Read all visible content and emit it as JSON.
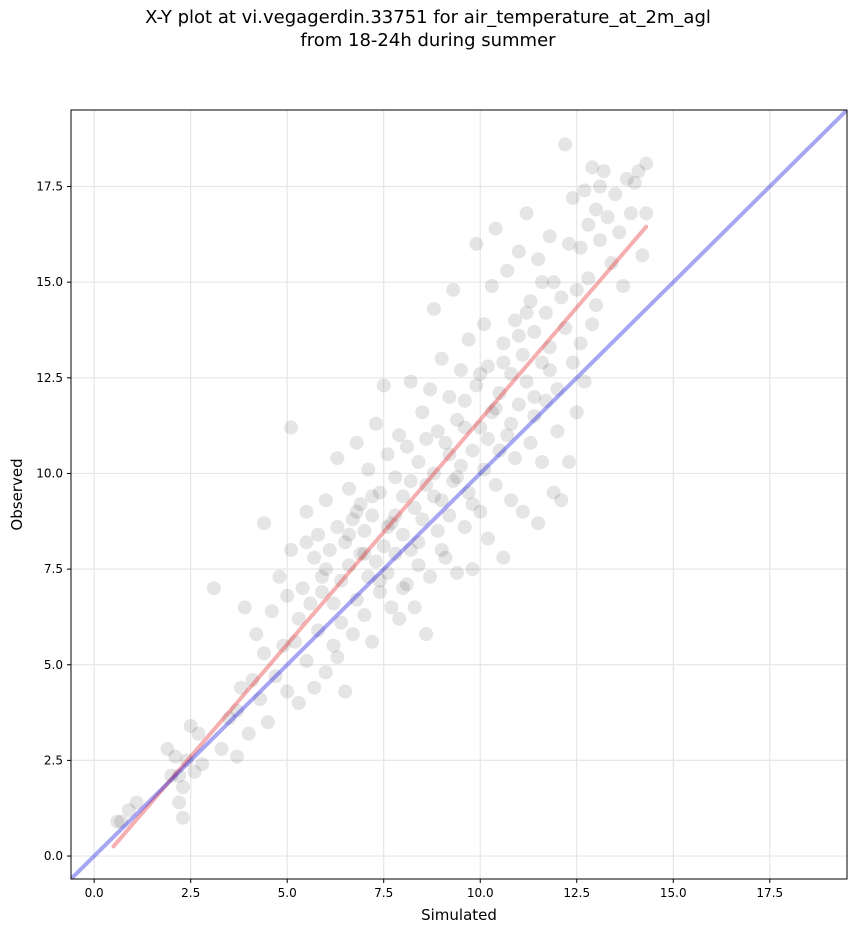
{
  "chart_data": {
    "type": "scatter",
    "title_line1": "X-Y plot at vi.vegagerdin.33751 for air_temperature_at_2m_agl",
    "title_line2": "from 18-24h during summer",
    "xlabel": "Simulated",
    "ylabel": "Observed",
    "xlim": [
      -0.6,
      19.5
    ],
    "ylim": [
      -0.6,
      19.5
    ],
    "xticks": [
      "0.0",
      "2.5",
      "5.0",
      "7.5",
      "10.0",
      "12.5",
      "15.0",
      "17.5"
    ],
    "yticks": [
      "0.0",
      "2.5",
      "5.0",
      "7.5",
      "10.0",
      "12.5",
      "15.0",
      "17.5"
    ],
    "xtick_values": [
      0,
      2.5,
      5,
      7.5,
      10,
      12.5,
      15,
      17.5
    ],
    "ytick_values": [
      0,
      2.5,
      5,
      7.5,
      10,
      12.5,
      15,
      17.5
    ],
    "grid": true,
    "series": [
      {
        "kind": "scatter",
        "color": "#000000",
        "opacity": 0.1,
        "points": [
          [
            0.6,
            0.9
          ],
          [
            0.7,
            0.9
          ],
          [
            0.9,
            1.2
          ],
          [
            1.1,
            1.4
          ],
          [
            1.9,
            2.8
          ],
          [
            2.0,
            2.1
          ],
          [
            2.1,
            2.6
          ],
          [
            2.2,
            1.4
          ],
          [
            2.2,
            2.1
          ],
          [
            2.3,
            1.0
          ],
          [
            2.3,
            1.8
          ],
          [
            2.4,
            2.5
          ],
          [
            2.5,
            3.4
          ],
          [
            2.6,
            2.2
          ],
          [
            2.7,
            3.2
          ],
          [
            2.8,
            2.4
          ],
          [
            3.1,
            7.0
          ],
          [
            3.3,
            2.8
          ],
          [
            3.5,
            3.6
          ],
          [
            3.7,
            2.6
          ],
          [
            3.7,
            3.8
          ],
          [
            3.8,
            4.4
          ],
          [
            3.9,
            6.5
          ],
          [
            4.0,
            3.2
          ],
          [
            4.1,
            4.6
          ],
          [
            4.2,
            5.8
          ],
          [
            4.3,
            4.1
          ],
          [
            4.4,
            8.7
          ],
          [
            4.4,
            5.3
          ],
          [
            4.5,
            3.5
          ],
          [
            4.6,
            6.4
          ],
          [
            4.7,
            4.7
          ],
          [
            4.8,
            7.3
          ],
          [
            4.9,
            5.5
          ],
          [
            5.0,
            4.3
          ],
          [
            5.0,
            6.8
          ],
          [
            5.1,
            11.2
          ],
          [
            5.1,
            8.0
          ],
          [
            5.2,
            5.6
          ],
          [
            5.3,
            4.0
          ],
          [
            5.3,
            6.2
          ],
          [
            5.4,
            7.0
          ],
          [
            5.5,
            9.0
          ],
          [
            5.5,
            5.1
          ],
          [
            5.6,
            6.6
          ],
          [
            5.7,
            4.4
          ],
          [
            5.7,
            7.8
          ],
          [
            5.8,
            8.4
          ],
          [
            5.8,
            5.9
          ],
          [
            5.9,
            6.9
          ],
          [
            6.0,
            4.8
          ],
          [
            6.0,
            7.5
          ],
          [
            6.0,
            9.3
          ],
          [
            6.1,
            8.0
          ],
          [
            6.2,
            5.5
          ],
          [
            6.2,
            6.6
          ],
          [
            6.3,
            8.6
          ],
          [
            6.3,
            10.4
          ],
          [
            6.4,
            7.2
          ],
          [
            6.4,
            6.1
          ],
          [
            6.5,
            4.3
          ],
          [
            6.5,
            8.2
          ],
          [
            6.6,
            9.6
          ],
          [
            6.6,
            7.6
          ],
          [
            6.7,
            5.8
          ],
          [
            6.7,
            8.8
          ],
          [
            6.8,
            6.7
          ],
          [
            6.8,
            10.8
          ],
          [
            6.9,
            7.9
          ],
          [
            6.9,
            9.2
          ],
          [
            7.0,
            6.3
          ],
          [
            7.0,
            8.5
          ],
          [
            7.1,
            7.3
          ],
          [
            7.1,
            10.1
          ],
          [
            7.2,
            5.6
          ],
          [
            7.2,
            8.9
          ],
          [
            7.3,
            7.7
          ],
          [
            7.3,
            11.3
          ],
          [
            7.4,
            6.9
          ],
          [
            7.4,
            9.5
          ],
          [
            7.5,
            8.1
          ],
          [
            7.5,
            12.3
          ],
          [
            7.6,
            7.4
          ],
          [
            7.6,
            10.5
          ],
          [
            7.7,
            6.5
          ],
          [
            7.7,
            8.7
          ],
          [
            7.8,
            9.9
          ],
          [
            7.8,
            7.9
          ],
          [
            7.9,
            11.0
          ],
          [
            7.9,
            6.2
          ],
          [
            8.0,
            8.4
          ],
          [
            8.0,
            9.4
          ],
          [
            8.1,
            7.1
          ],
          [
            8.1,
            10.7
          ],
          [
            8.2,
            12.4
          ],
          [
            8.2,
            8.0
          ],
          [
            8.3,
            9.1
          ],
          [
            8.3,
            6.5
          ],
          [
            8.4,
            10.3
          ],
          [
            8.4,
            7.6
          ],
          [
            8.5,
            11.6
          ],
          [
            8.5,
            8.8
          ],
          [
            8.6,
            5.8
          ],
          [
            8.6,
            9.7
          ],
          [
            8.7,
            12.2
          ],
          [
            8.7,
            7.3
          ],
          [
            8.8,
            10.0
          ],
          [
            8.8,
            14.3
          ],
          [
            8.9,
            8.5
          ],
          [
            8.9,
            11.1
          ],
          [
            9.0,
            9.3
          ],
          [
            9.0,
            13.0
          ],
          [
            9.1,
            7.8
          ],
          [
            9.1,
            10.8
          ],
          [
            9.2,
            12.0
          ],
          [
            9.2,
            8.9
          ],
          [
            9.3,
            9.8
          ],
          [
            9.3,
            14.8
          ],
          [
            9.4,
            11.4
          ],
          [
            9.4,
            7.4
          ],
          [
            9.5,
            10.2
          ],
          [
            9.5,
            12.7
          ],
          [
            9.6,
            8.6
          ],
          [
            9.6,
            11.9
          ],
          [
            9.7,
            9.5
          ],
          [
            9.7,
            13.5
          ],
          [
            9.8,
            10.6
          ],
          [
            9.8,
            7.5
          ],
          [
            9.9,
            12.3
          ],
          [
            9.9,
            16.0
          ],
          [
            10.0,
            9.0
          ],
          [
            10.0,
            11.2
          ],
          [
            10.1,
            13.9
          ],
          [
            10.1,
            10.1
          ],
          [
            10.2,
            8.3
          ],
          [
            10.2,
            12.8
          ],
          [
            10.3,
            11.6
          ],
          [
            10.3,
            14.9
          ],
          [
            10.4,
            9.7
          ],
          [
            10.4,
            16.4
          ],
          [
            10.5,
            12.1
          ],
          [
            10.5,
            10.6
          ],
          [
            10.6,
            7.8
          ],
          [
            10.6,
            13.4
          ],
          [
            10.7,
            11.0
          ],
          [
            10.7,
            15.3
          ],
          [
            10.8,
            9.3
          ],
          [
            10.8,
            12.6
          ],
          [
            10.9,
            14.0
          ],
          [
            10.9,
            10.4
          ],
          [
            11.0,
            11.8
          ],
          [
            11.0,
            15.8
          ],
          [
            11.1,
            13.1
          ],
          [
            11.1,
            9.0
          ],
          [
            11.2,
            12.4
          ],
          [
            11.2,
            16.8
          ],
          [
            11.3,
            10.8
          ],
          [
            11.3,
            14.5
          ],
          [
            11.4,
            11.5
          ],
          [
            11.4,
            13.7
          ],
          [
            11.5,
            8.7
          ],
          [
            11.5,
            15.6
          ],
          [
            11.6,
            12.9
          ],
          [
            11.6,
            10.3
          ],
          [
            11.7,
            14.2
          ],
          [
            11.7,
            11.9
          ],
          [
            11.8,
            16.2
          ],
          [
            11.8,
            13.3
          ],
          [
            11.9,
            9.5
          ],
          [
            11.9,
            15.0
          ],
          [
            12.0,
            12.2
          ],
          [
            12.0,
            11.1
          ],
          [
            12.1,
            14.6
          ],
          [
            12.1,
            9.3
          ],
          [
            12.2,
            18.6
          ],
          [
            12.2,
            13.8
          ],
          [
            12.3,
            10.3
          ],
          [
            12.3,
            16.0
          ],
          [
            12.4,
            12.9
          ],
          [
            12.4,
            17.2
          ],
          [
            12.5,
            11.6
          ],
          [
            12.5,
            14.8
          ],
          [
            12.6,
            15.9
          ],
          [
            12.6,
            13.4
          ],
          [
            12.7,
            17.4
          ],
          [
            12.7,
            12.4
          ],
          [
            12.8,
            16.5
          ],
          [
            12.8,
            15.1
          ],
          [
            12.9,
            18.0
          ],
          [
            12.9,
            13.9
          ],
          [
            13.0,
            16.9
          ],
          [
            13.0,
            14.4
          ],
          [
            13.1,
            17.5
          ],
          [
            13.1,
            16.1
          ],
          [
            13.2,
            17.9
          ],
          [
            13.3,
            16.7
          ],
          [
            13.4,
            15.5
          ],
          [
            13.5,
            17.3
          ],
          [
            13.6,
            16.3
          ],
          [
            13.7,
            14.9
          ],
          [
            13.8,
            17.7
          ],
          [
            13.9,
            16.8
          ],
          [
            14.0,
            17.6
          ],
          [
            14.1,
            17.9
          ],
          [
            14.2,
            15.7
          ],
          [
            14.3,
            16.8
          ],
          [
            14.3,
            18.1
          ],
          [
            5.5,
            8.2
          ],
          [
            5.9,
            7.3
          ],
          [
            6.3,
            5.2
          ],
          [
            6.6,
            8.4
          ],
          [
            6.8,
            9.0
          ],
          [
            7.0,
            7.9
          ],
          [
            7.2,
            9.4
          ],
          [
            7.4,
            7.2
          ],
          [
            7.6,
            8.6
          ],
          [
            7.8,
            8.9
          ],
          [
            8.0,
            7.0
          ],
          [
            8.2,
            9.8
          ],
          [
            8.4,
            8.2
          ],
          [
            8.6,
            10.9
          ],
          [
            8.8,
            9.4
          ],
          [
            9.0,
            8.0
          ],
          [
            9.2,
            10.5
          ],
          [
            9.4,
            9.9
          ],
          [
            9.6,
            11.2
          ],
          [
            9.8,
            9.2
          ],
          [
            10.0,
            12.6
          ],
          [
            10.2,
            10.9
          ],
          [
            10.4,
            11.7
          ],
          [
            10.6,
            12.9
          ],
          [
            10.8,
            11.3
          ],
          [
            11.0,
            13.6
          ],
          [
            11.2,
            14.2
          ],
          [
            11.4,
            12.0
          ],
          [
            11.6,
            15.0
          ],
          [
            11.8,
            12.7
          ]
        ]
      },
      {
        "kind": "line",
        "label": "",
        "color": "#e41a1c",
        "x": [
          0.5,
          14.3
        ],
        "y": [
          0.25,
          16.45
        ]
      },
      {
        "kind": "line",
        "label": "",
        "color": "#0000dd",
        "x": [
          -0.6,
          19.5
        ],
        "y": [
          -0.6,
          19.5
        ]
      }
    ]
  }
}
